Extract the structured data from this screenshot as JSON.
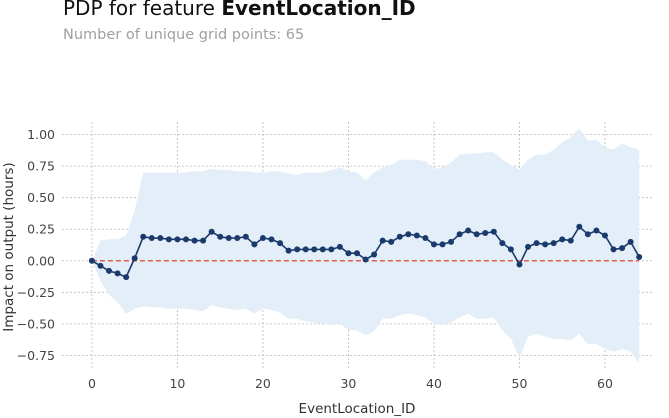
{
  "header": {
    "title_prefix": "PDP for feature ",
    "title_feature": "EventLocation_ID",
    "subtitle": "Number of unique grid points: 65"
  },
  "colors": {
    "line": "#1a3a6b",
    "band": "#e4eef9",
    "baseline": "#e0604f",
    "grid": "#b8b8b8"
  },
  "chart_data": {
    "type": "line",
    "xlabel": "EventLocation_ID",
    "ylabel": "Impact on output (hours)",
    "xlim": [
      -3.5,
      65.5
    ],
    "ylim": [
      -0.85,
      1.1
    ],
    "xticks": [
      0,
      10,
      20,
      30,
      40,
      50,
      60
    ],
    "yticks": [
      1.0,
      0.75,
      0.5,
      0.25,
      0.0,
      -0.25,
      -0.5,
      -0.75
    ],
    "ytick_labels": [
      "1.00",
      "0.75",
      "0.50",
      "0.25",
      "0.00",
      "−0.25",
      "−0.50",
      "−0.75"
    ],
    "grid": true,
    "baseline_y": 0,
    "x": [
      0,
      1,
      2,
      3,
      4,
      5,
      6,
      7,
      8,
      9,
      10,
      11,
      12,
      13,
      14,
      15,
      16,
      17,
      18,
      19,
      20,
      21,
      22,
      23,
      24,
      25,
      26,
      27,
      28,
      29,
      30,
      31,
      32,
      33,
      34,
      35,
      36,
      37,
      38,
      39,
      40,
      41,
      42,
      43,
      44,
      45,
      46,
      47,
      48,
      49,
      50,
      51,
      52,
      53,
      54,
      55,
      56,
      57,
      58,
      59,
      60,
      61,
      62,
      63,
      64
    ],
    "y": [
      0.0,
      -0.04,
      -0.08,
      -0.1,
      -0.13,
      0.02,
      0.19,
      0.18,
      0.18,
      0.17,
      0.17,
      0.17,
      0.16,
      0.16,
      0.23,
      0.19,
      0.18,
      0.18,
      0.19,
      0.13,
      0.18,
      0.17,
      0.14,
      0.08,
      0.09,
      0.09,
      0.09,
      0.09,
      0.09,
      0.11,
      0.06,
      0.06,
      0.01,
      0.05,
      0.16,
      0.15,
      0.19,
      0.21,
      0.2,
      0.18,
      0.13,
      0.13,
      0.15,
      0.21,
      0.24,
      0.21,
      0.22,
      0.23,
      0.14,
      0.09,
      -0.03,
      0.11,
      0.14,
      0.13,
      0.14,
      0.17,
      0.16,
      0.27,
      0.21,
      0.24,
      0.2,
      0.09,
      0.1,
      0.15,
      0.03
    ],
    "band_upper": [
      0.0,
      0.16,
      0.17,
      0.17,
      0.2,
      0.4,
      0.7,
      0.7,
      0.7,
      0.7,
      0.7,
      0.7,
      0.71,
      0.71,
      0.73,
      0.72,
      0.72,
      0.71,
      0.71,
      0.7,
      0.7,
      0.71,
      0.71,
      0.69,
      0.68,
      0.7,
      0.7,
      0.7,
      0.72,
      0.74,
      0.71,
      0.7,
      0.64,
      0.7,
      0.74,
      0.76,
      0.8,
      0.8,
      0.8,
      0.79,
      0.73,
      0.74,
      0.78,
      0.84,
      0.85,
      0.85,
      0.86,
      0.86,
      0.8,
      0.76,
      0.72,
      0.8,
      0.84,
      0.84,
      0.88,
      0.94,
      0.98,
      1.05,
      0.95,
      0.96,
      0.9,
      0.88,
      0.93,
      0.9,
      0.88
    ],
    "band_lower": [
      0.0,
      -0.16,
      -0.27,
      -0.33,
      -0.42,
      -0.38,
      -0.36,
      -0.37,
      -0.37,
      -0.38,
      -0.38,
      -0.38,
      -0.39,
      -0.4,
      -0.35,
      -0.37,
      -0.38,
      -0.39,
      -0.38,
      -0.42,
      -0.38,
      -0.39,
      -0.41,
      -0.46,
      -0.46,
      -0.48,
      -0.49,
      -0.5,
      -0.51,
      -0.5,
      -0.55,
      -0.55,
      -0.59,
      -0.56,
      -0.46,
      -0.46,
      -0.43,
      -0.42,
      -0.43,
      -0.45,
      -0.5,
      -0.51,
      -0.49,
      -0.45,
      -0.42,
      -0.46,
      -0.46,
      -0.45,
      -0.55,
      -0.62,
      -0.77,
      -0.6,
      -0.58,
      -0.6,
      -0.62,
      -0.62,
      -0.63,
      -0.58,
      -0.66,
      -0.66,
      -0.7,
      -0.72,
      -0.7,
      -0.72,
      -0.82
    ]
  }
}
